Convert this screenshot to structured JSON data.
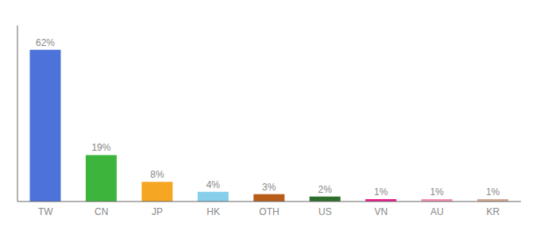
{
  "chart_data": {
    "type": "bar",
    "categories": [
      "TW",
      "CN",
      "JP",
      "HK",
      "OTH",
      "US",
      "VN",
      "AU",
      "KR"
    ],
    "values": [
      62,
      19,
      8,
      4,
      3,
      2,
      1,
      1,
      1
    ],
    "value_labels": [
      "62%",
      "19%",
      "8%",
      "4%",
      "3%",
      "2%",
      "1%",
      "1%",
      "1%"
    ],
    "data_labels": true,
    "colors": [
      "#4d72d9",
      "#3db53d",
      "#f5a623",
      "#87ceeb",
      "#b85c1a",
      "#2d6e2d",
      "#e91e8c",
      "#f48fb1",
      "#d4a993"
    ],
    "ylim": [
      0,
      72
    ],
    "grid": false,
    "tick_labels": "x"
  }
}
